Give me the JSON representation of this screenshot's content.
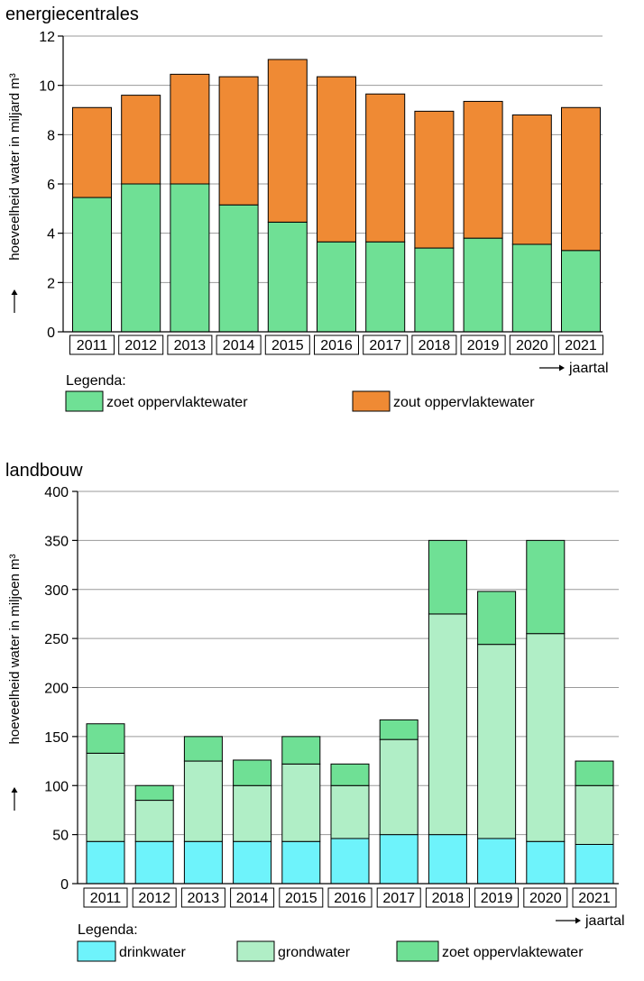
{
  "chart_data": [
    {
      "type": "bar",
      "stacked": true,
      "title": "energiecentrales",
      "ylabel": "hoeveelheid water in miljard m³",
      "xlabel": "jaartal",
      "ylim": [
        0,
        12
      ],
      "yticks": [
        0,
        2,
        4,
        6,
        8,
        10,
        12
      ],
      "grid": true,
      "categories": [
        "2011",
        "2012",
        "2013",
        "2014",
        "2015",
        "2016",
        "2017",
        "2018",
        "2019",
        "2020",
        "2021"
      ],
      "legend_title": "Legenda:",
      "series": [
        {
          "name": "zoet oppervlaktewater",
          "color": "#6fe095",
          "values": [
            5.45,
            6.0,
            6.0,
            5.15,
            4.45,
            3.65,
            3.65,
            3.4,
            3.8,
            3.55,
            3.3
          ]
        },
        {
          "name": "zout oppervlaktewater",
          "color": "#ef8a34",
          "values": [
            3.65,
            3.6,
            4.45,
            5.2,
            6.6,
            6.7,
            6.0,
            5.55,
            5.55,
            5.25,
            5.8
          ]
        }
      ]
    },
    {
      "type": "bar",
      "stacked": true,
      "title": "landbouw",
      "ylabel": "hoeveelheid water in miljoen m³",
      "xlabel": "jaartal",
      "ylim": [
        0,
        400
      ],
      "yticks": [
        0,
        50,
        100,
        150,
        200,
        250,
        300,
        350,
        400
      ],
      "grid": true,
      "categories": [
        "2011",
        "2012",
        "2013",
        "2014",
        "2015",
        "2016",
        "2017",
        "2018",
        "2019",
        "2020",
        "2021"
      ],
      "legend_title": "Legenda:",
      "series": [
        {
          "name": "drinkwater",
          "color": "#6ef3fb",
          "values": [
            43,
            43,
            43,
            43,
            43,
            46,
            50,
            50,
            46,
            43,
            40
          ]
        },
        {
          "name": "grondwater",
          "color": "#b0eec6",
          "values": [
            90,
            42,
            82,
            57,
            79,
            54,
            97,
            225,
            198,
            212,
            60
          ]
        },
        {
          "name": "zoet oppervlaktewater",
          "color": "#6fe095",
          "values": [
            30,
            15,
            25,
            26,
            28,
            22,
            20,
            75,
            54,
            95,
            25
          ]
        }
      ]
    }
  ]
}
